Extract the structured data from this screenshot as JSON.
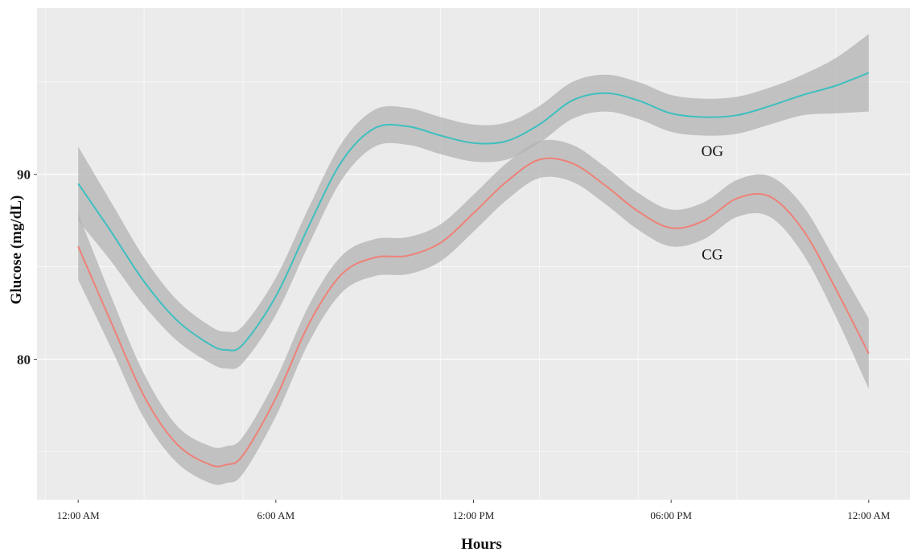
{
  "chart_data": {
    "type": "line",
    "title": "",
    "xlabel": "Hours",
    "ylabel": "Glucose (mg/dL)",
    "x_ticks": [
      {
        "hour": 0,
        "label": "12:00 AM"
      },
      {
        "hour": 6,
        "label": "6:00 AM"
      },
      {
        "hour": 12,
        "label": "12:00 PM"
      },
      {
        "hour": 18,
        "label": "06:00 PM"
      },
      {
        "hour": 24,
        "label": "12:00 AM"
      }
    ],
    "y_ticks": [
      80,
      90
    ],
    "xlim": [
      -1.25,
      25.25
    ],
    "ylim": [
      72.4,
      99.0
    ],
    "grid": true,
    "background": "#ebebeb",
    "band_color": "#b3b3b3",
    "series": [
      {
        "name": "OG",
        "color": "#3fbfbf",
        "points": [
          [
            0,
            89.5
          ],
          [
            1,
            86.9
          ],
          [
            2,
            84.2
          ],
          [
            3,
            82.1
          ],
          [
            4,
            80.8
          ],
          [
            4.5,
            80.5
          ],
          [
            5,
            80.8
          ],
          [
            6,
            83.4
          ],
          [
            7,
            87.2
          ],
          [
            8,
            90.7
          ],
          [
            9,
            92.5
          ],
          [
            10,
            92.6
          ],
          [
            11,
            92.1
          ],
          [
            12,
            91.7
          ],
          [
            13,
            91.8
          ],
          [
            14,
            92.7
          ],
          [
            15,
            94.0
          ],
          [
            16,
            94.4
          ],
          [
            17,
            94.0
          ],
          [
            18,
            93.3
          ],
          [
            19,
            93.1
          ],
          [
            20,
            93.2
          ],
          [
            21,
            93.7
          ],
          [
            22,
            94.3
          ],
          [
            23,
            94.8
          ],
          [
            24,
            95.5
          ]
        ],
        "band_halfwidth": [
          2.0,
          1.6,
          1.3,
          1.1,
          1.0,
          1.0,
          1.0,
          1.0,
          1.0,
          1.0,
          1.0,
          1.0,
          1.0,
          1.0,
          1.0,
          1.0,
          1.0,
          1.0,
          1.0,
          1.0,
          1.0,
          1.0,
          1.0,
          1.1,
          1.5,
          2.1
        ]
      },
      {
        "name": "CG",
        "color": "#ee8177",
        "points": [
          [
            0,
            86.1
          ],
          [
            1,
            82.0
          ],
          [
            2,
            78.0
          ],
          [
            3,
            75.4
          ],
          [
            4,
            74.3
          ],
          [
            4.5,
            74.3
          ],
          [
            5,
            74.8
          ],
          [
            6,
            77.9
          ],
          [
            7,
            81.9
          ],
          [
            8,
            84.6
          ],
          [
            9,
            85.5
          ],
          [
            10,
            85.6
          ],
          [
            11,
            86.3
          ],
          [
            12,
            87.9
          ],
          [
            13,
            89.6
          ],
          [
            14,
            90.8
          ],
          [
            15,
            90.6
          ],
          [
            16,
            89.4
          ],
          [
            17,
            88.0
          ],
          [
            18,
            87.1
          ],
          [
            19,
            87.5
          ],
          [
            20,
            88.7
          ],
          [
            21,
            88.8
          ],
          [
            22,
            87.0
          ],
          [
            23,
            83.8
          ],
          [
            24,
            80.3
          ]
        ],
        "band_halfwidth": [
          1.8,
          1.4,
          1.2,
          1.0,
          1.0,
          1.0,
          1.0,
          1.0,
          1.0,
          1.0,
          1.0,
          1.0,
          1.0,
          1.0,
          1.0,
          1.0,
          1.0,
          1.0,
          1.0,
          1.0,
          1.0,
          1.0,
          1.1,
          1.3,
          1.5,
          1.9
        ]
      }
    ]
  }
}
